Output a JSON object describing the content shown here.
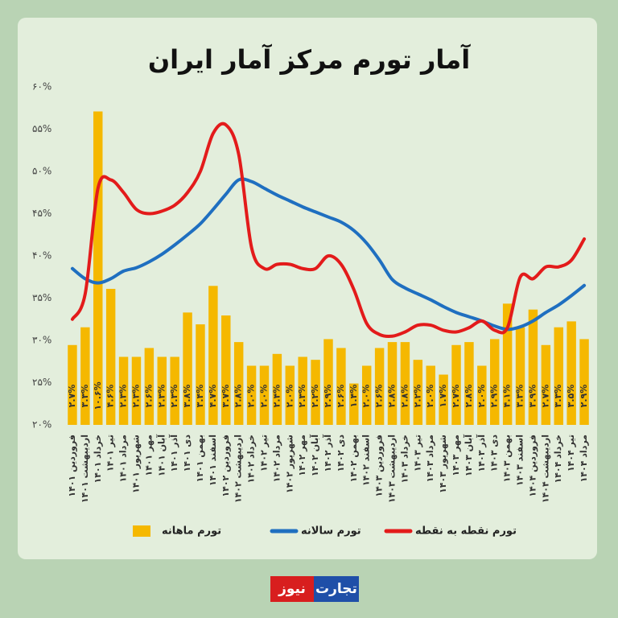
{
  "chart_data": {
    "type": "bar",
    "title": "آمار تورم مرکز آمار ایران",
    "logo": [
      "تجارت",
      "نیوز"
    ],
    "categories": [
      "فروردین ۱۴۰۱",
      "اردیبهشت ۱۴۰۱",
      "خرداد ۱۴۰۱",
      "تیر ۱۴۰۱",
      "مرداد ۱۴۰۱",
      "شهریور ۱۴۰۱",
      "مهر ۱۴۰۱",
      "آبان ۱۴۰۱",
      "آذر ۱۴۰۱",
      "دی ۱۴۰۱",
      "بهمن ۱۴۰۱",
      "اسفند ۱۴۰۱",
      "فروردین ۱۴۰۲",
      "اردیبهشت ۱۴۰۲",
      "خرداد ۱۴۰۲",
      "تیر ۱۴۰۲",
      "مرداد ۱۴۰۲",
      "شهریور ۱۴۰۲",
      "مهر ۱۴۰۲",
      "آبان ۱۴۰۲",
      "آذر ۱۴۰۲",
      "دی ۱۴۰۲",
      "بهمن ۱۴۰۲",
      "اسفند ۱۴۰۲",
      "فروردین ۱۴۰۳",
      "اردیبهشت ۱۴۰۳",
      "خرداد ۱۴۰۳",
      "تیر ۱۴۰۳",
      "مرداد ۱۴۰۳",
      "شهریور ۱۴۰۳",
      "مهر ۱۴۰۳",
      "آبان ۱۴۰۳",
      "آذر ۱۴۰۳",
      "دی ۱۴۰۳",
      "بهمن ۱۴۰۳",
      "اسفند ۱۴۰۳",
      "فروردین ۱۴۰۴",
      "اردیبهشت ۱۴۰۴",
      "خرداد ۱۴۰۴",
      "تیر ۱۴۰۴",
      "مرداد ۱۴۰۴"
    ],
    "ylim": [
      20,
      60
    ],
    "yticks": [
      {
        "value": 20,
        "label": "۲۰%"
      },
      {
        "value": 25,
        "label": "۲۵%"
      },
      {
        "value": 30,
        "label": "۳۰%"
      },
      {
        "value": 35,
        "label": "۳۵%"
      },
      {
        "value": 40,
        "label": "۴۰%"
      },
      {
        "value": 45,
        "label": "۴۵%"
      },
      {
        "value": 50,
        "label": "۵۰%"
      },
      {
        "value": 55,
        "label": "۵۵%"
      },
      {
        "value": 60,
        "label": "۶۰%"
      }
    ],
    "y2lim": [
      0,
      11.43
    ],
    "series": [
      {
        "name": "تورم ماهانه",
        "type": "bar",
        "axis": "y2",
        "color": "#f5b800",
        "values": [
          2.7,
          3.3,
          10.6,
          4.6,
          2.3,
          2.3,
          2.6,
          2.3,
          2.3,
          3.8,
          3.4,
          4.7,
          3.7,
          2.8,
          2.0,
          2.0,
          2.4,
          2.0,
          2.3,
          2.2,
          2.9,
          2.6,
          1.4,
          2.0,
          2.6,
          2.8,
          2.8,
          2.2,
          2.0,
          1.7,
          2.7,
          2.8,
          2.0,
          2.9,
          4.1,
          3.3,
          3.9,
          2.7,
          3.3,
          3.5,
          2.9
        ],
        "value_labels": [
          "۲.۷%",
          "۳.۳%",
          "۱۰.۶%",
          "۴.۶%",
          "۲.۳%",
          "۲.۳%",
          "۲.۶%",
          "۲.۳%",
          "۲.۳%",
          "۳.۸%",
          "۳.۴%",
          "۴.۷%",
          "۳.۷%",
          "۲.۸%",
          "۲.۰%",
          "۲.۰%",
          "۲.۴%",
          "۲.۰%",
          "۲.۳%",
          "۲.۲%",
          "۲.۹%",
          "۲.۶%",
          "۱.۴%",
          "۲.۰%",
          "۲.۶%",
          "۲.۸%",
          "۲.۸%",
          "۲.۲%",
          "۲.۰%",
          "۱.۷%",
          "۲.۷%",
          "۲.۸%",
          "۲.۰%",
          "۲.۹%",
          "۴.۱%",
          "۳.۳%",
          "۳.۹%",
          "۲.۷%",
          "۳.۳%",
          "۳.۵%",
          "۲.۹%"
        ]
      },
      {
        "name": "تورم سالانه",
        "type": "line",
        "color": "#1f6fc0",
        "values": [
          38.5,
          37.3,
          36.8,
          37.3,
          38.2,
          38.6,
          39.3,
          40.2,
          41.3,
          42.5,
          43.8,
          45.5,
          47.3,
          49,
          48.8,
          48,
          47.2,
          46.5,
          45.8,
          45.2,
          44.6,
          44,
          43,
          41.5,
          39.5,
          37.2,
          36.2,
          35.5,
          34.8,
          34,
          33.3,
          32.8,
          32.3,
          31.7,
          31.3,
          31.6,
          32.3,
          33.3,
          34.2,
          35.3,
          36.5
        ]
      },
      {
        "name": "تورم نقطه به نقطه",
        "type": "line",
        "color": "#e31b1b",
        "values": [
          32.5,
          35.5,
          48,
          49,
          47.5,
          45.5,
          45,
          45.3,
          46,
          47.5,
          50,
          54.5,
          55.5,
          52,
          41,
          38.5,
          39,
          39,
          38.5,
          38.5,
          40,
          39,
          36,
          32,
          30.7,
          30.5,
          31,
          31.8,
          31.8,
          31.2,
          31,
          31.5,
          32.3,
          31.2,
          31.5,
          37.5,
          37.3,
          38.7,
          38.7,
          39.5,
          42
        ]
      }
    ]
  }
}
